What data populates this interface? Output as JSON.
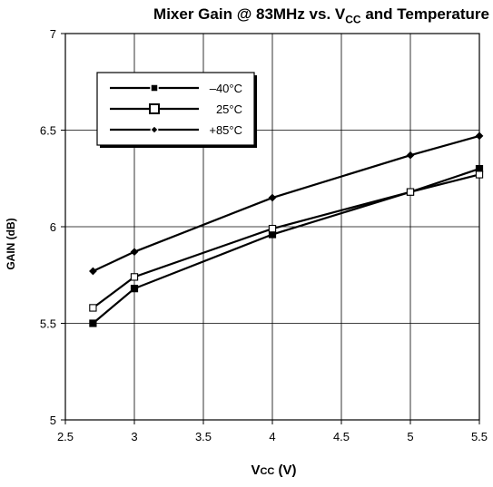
{
  "chart_data": {
    "type": "line",
    "title": {
      "main": "Mixer Gain @ 83MHz vs. V",
      "main_sub": "CC",
      "main_tail": " and Temperature"
    },
    "xlabel": {
      "main": "V",
      "sub": "CC",
      "tail": " (V)"
    },
    "ylabel": "GAIN (dB)",
    "xlim": [
      2.5,
      5.5
    ],
    "ylim": [
      5,
      7
    ],
    "xticks": [
      "2.5",
      "3",
      "3.5",
      "4",
      "4.5",
      "5",
      "5.5"
    ],
    "yticks": [
      "5",
      "5.5",
      "6",
      "6.5",
      "7"
    ],
    "grid": true,
    "legend_position": "top-left",
    "x": [
      2.7,
      3,
      4,
      5,
      5.5
    ],
    "series": [
      {
        "name": "–40°C",
        "marker": "filled-square",
        "values": [
          5.5,
          5.68,
          5.96,
          6.18,
          6.3
        ]
      },
      {
        "name": "25°C",
        "marker": "open-square",
        "values": [
          5.58,
          5.74,
          5.99,
          6.18,
          6.27
        ]
      },
      {
        "name": "+85°C",
        "marker": "diamond",
        "values": [
          5.77,
          5.87,
          6.15,
          6.37,
          6.47
        ]
      }
    ]
  }
}
